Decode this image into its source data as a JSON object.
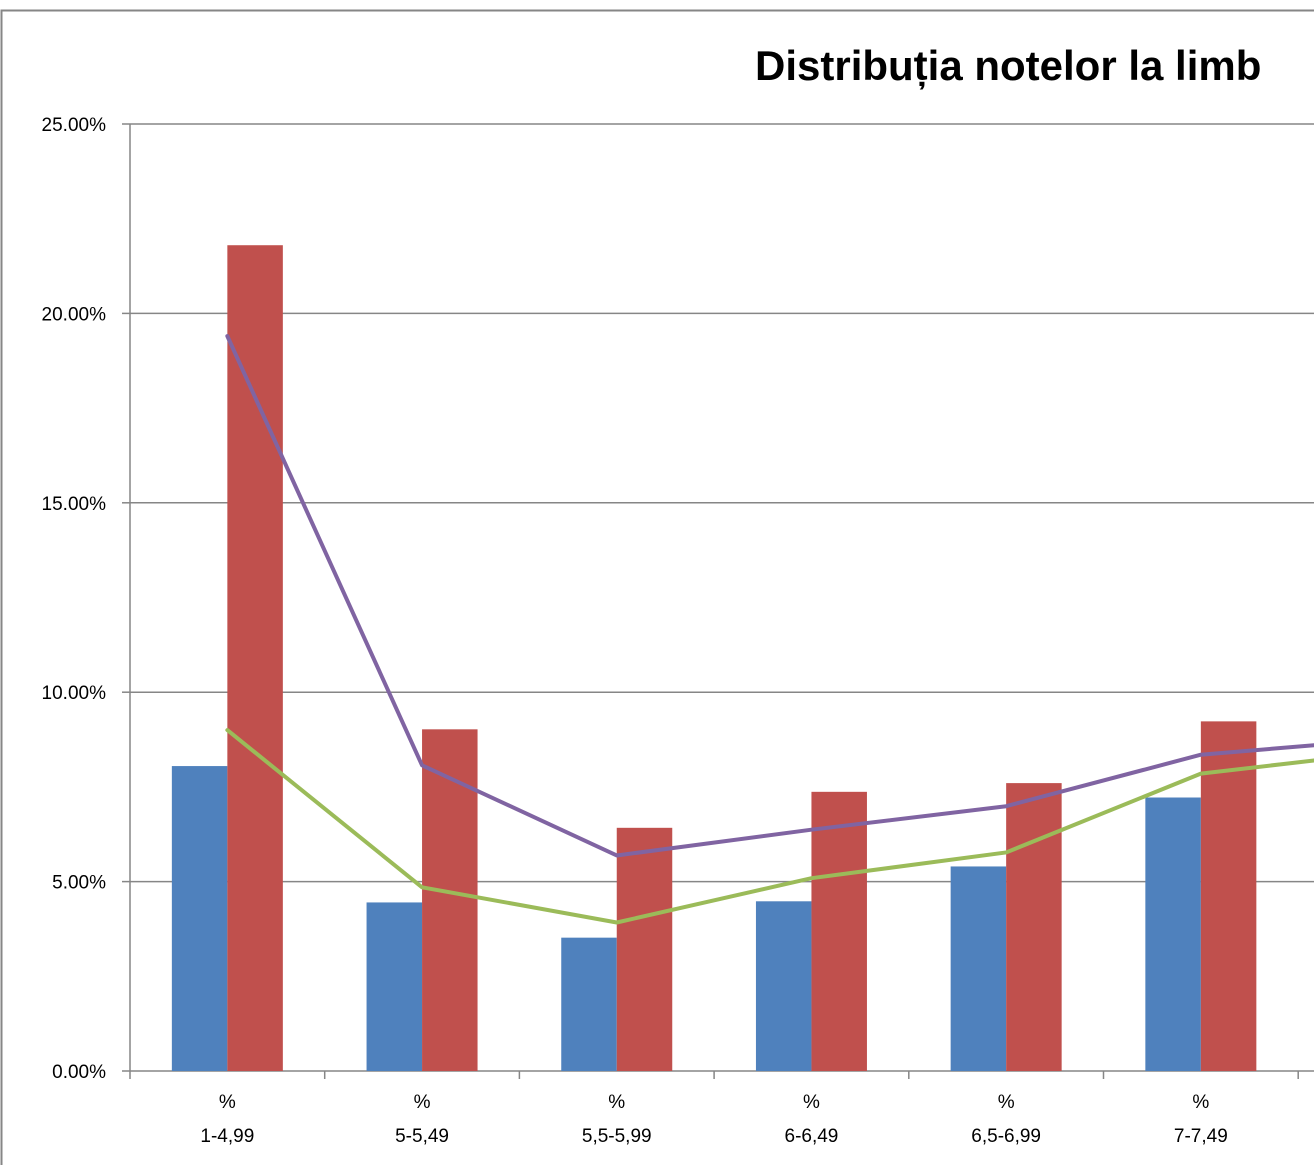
{
  "chart_data": {
    "type": "bar",
    "title": "Distribuția notelor la limb",
    "xlabel": "",
    "ylabel": "",
    "ylim": [
      0,
      25
    ],
    "y_unit": "%",
    "y_ticks": [
      "0.00%",
      "5.00%",
      "10.00%",
      "15.00%",
      "20.00%",
      "25.00%"
    ],
    "grid": true,
    "categories": [
      [
        "%",
        "1-4,99"
      ],
      [
        "%",
        "5-5,49"
      ],
      [
        "%",
        "5,5-5,99"
      ],
      [
        "%",
        "6-6,49"
      ],
      [
        "%",
        "6,5-6,99"
      ],
      [
        "%",
        "7-7,49"
      ]
    ],
    "series": [
      {
        "kind": "bar",
        "color": "#4F81BD",
        "values": [
          8.05,
          4.45,
          3.52,
          4.48,
          5.4,
          7.22
        ]
      },
      {
        "kind": "bar",
        "color": "#C0504D",
        "values": [
          21.8,
          9.02,
          6.42,
          7.37,
          7.6,
          9.23
        ]
      },
      {
        "kind": "line",
        "color": "#8064A2",
        "values": [
          19.4,
          8.07,
          5.69,
          6.37,
          6.99,
          8.35
        ]
      },
      {
        "kind": "line",
        "color": "#9BBB59",
        "values": [
          9.0,
          4.85,
          3.92,
          5.09,
          5.77,
          7.85
        ]
      }
    ],
    "line_continuation": {
      "note": "",
      "purple_end": 8.78,
      "green_end": 8.45
    }
  }
}
